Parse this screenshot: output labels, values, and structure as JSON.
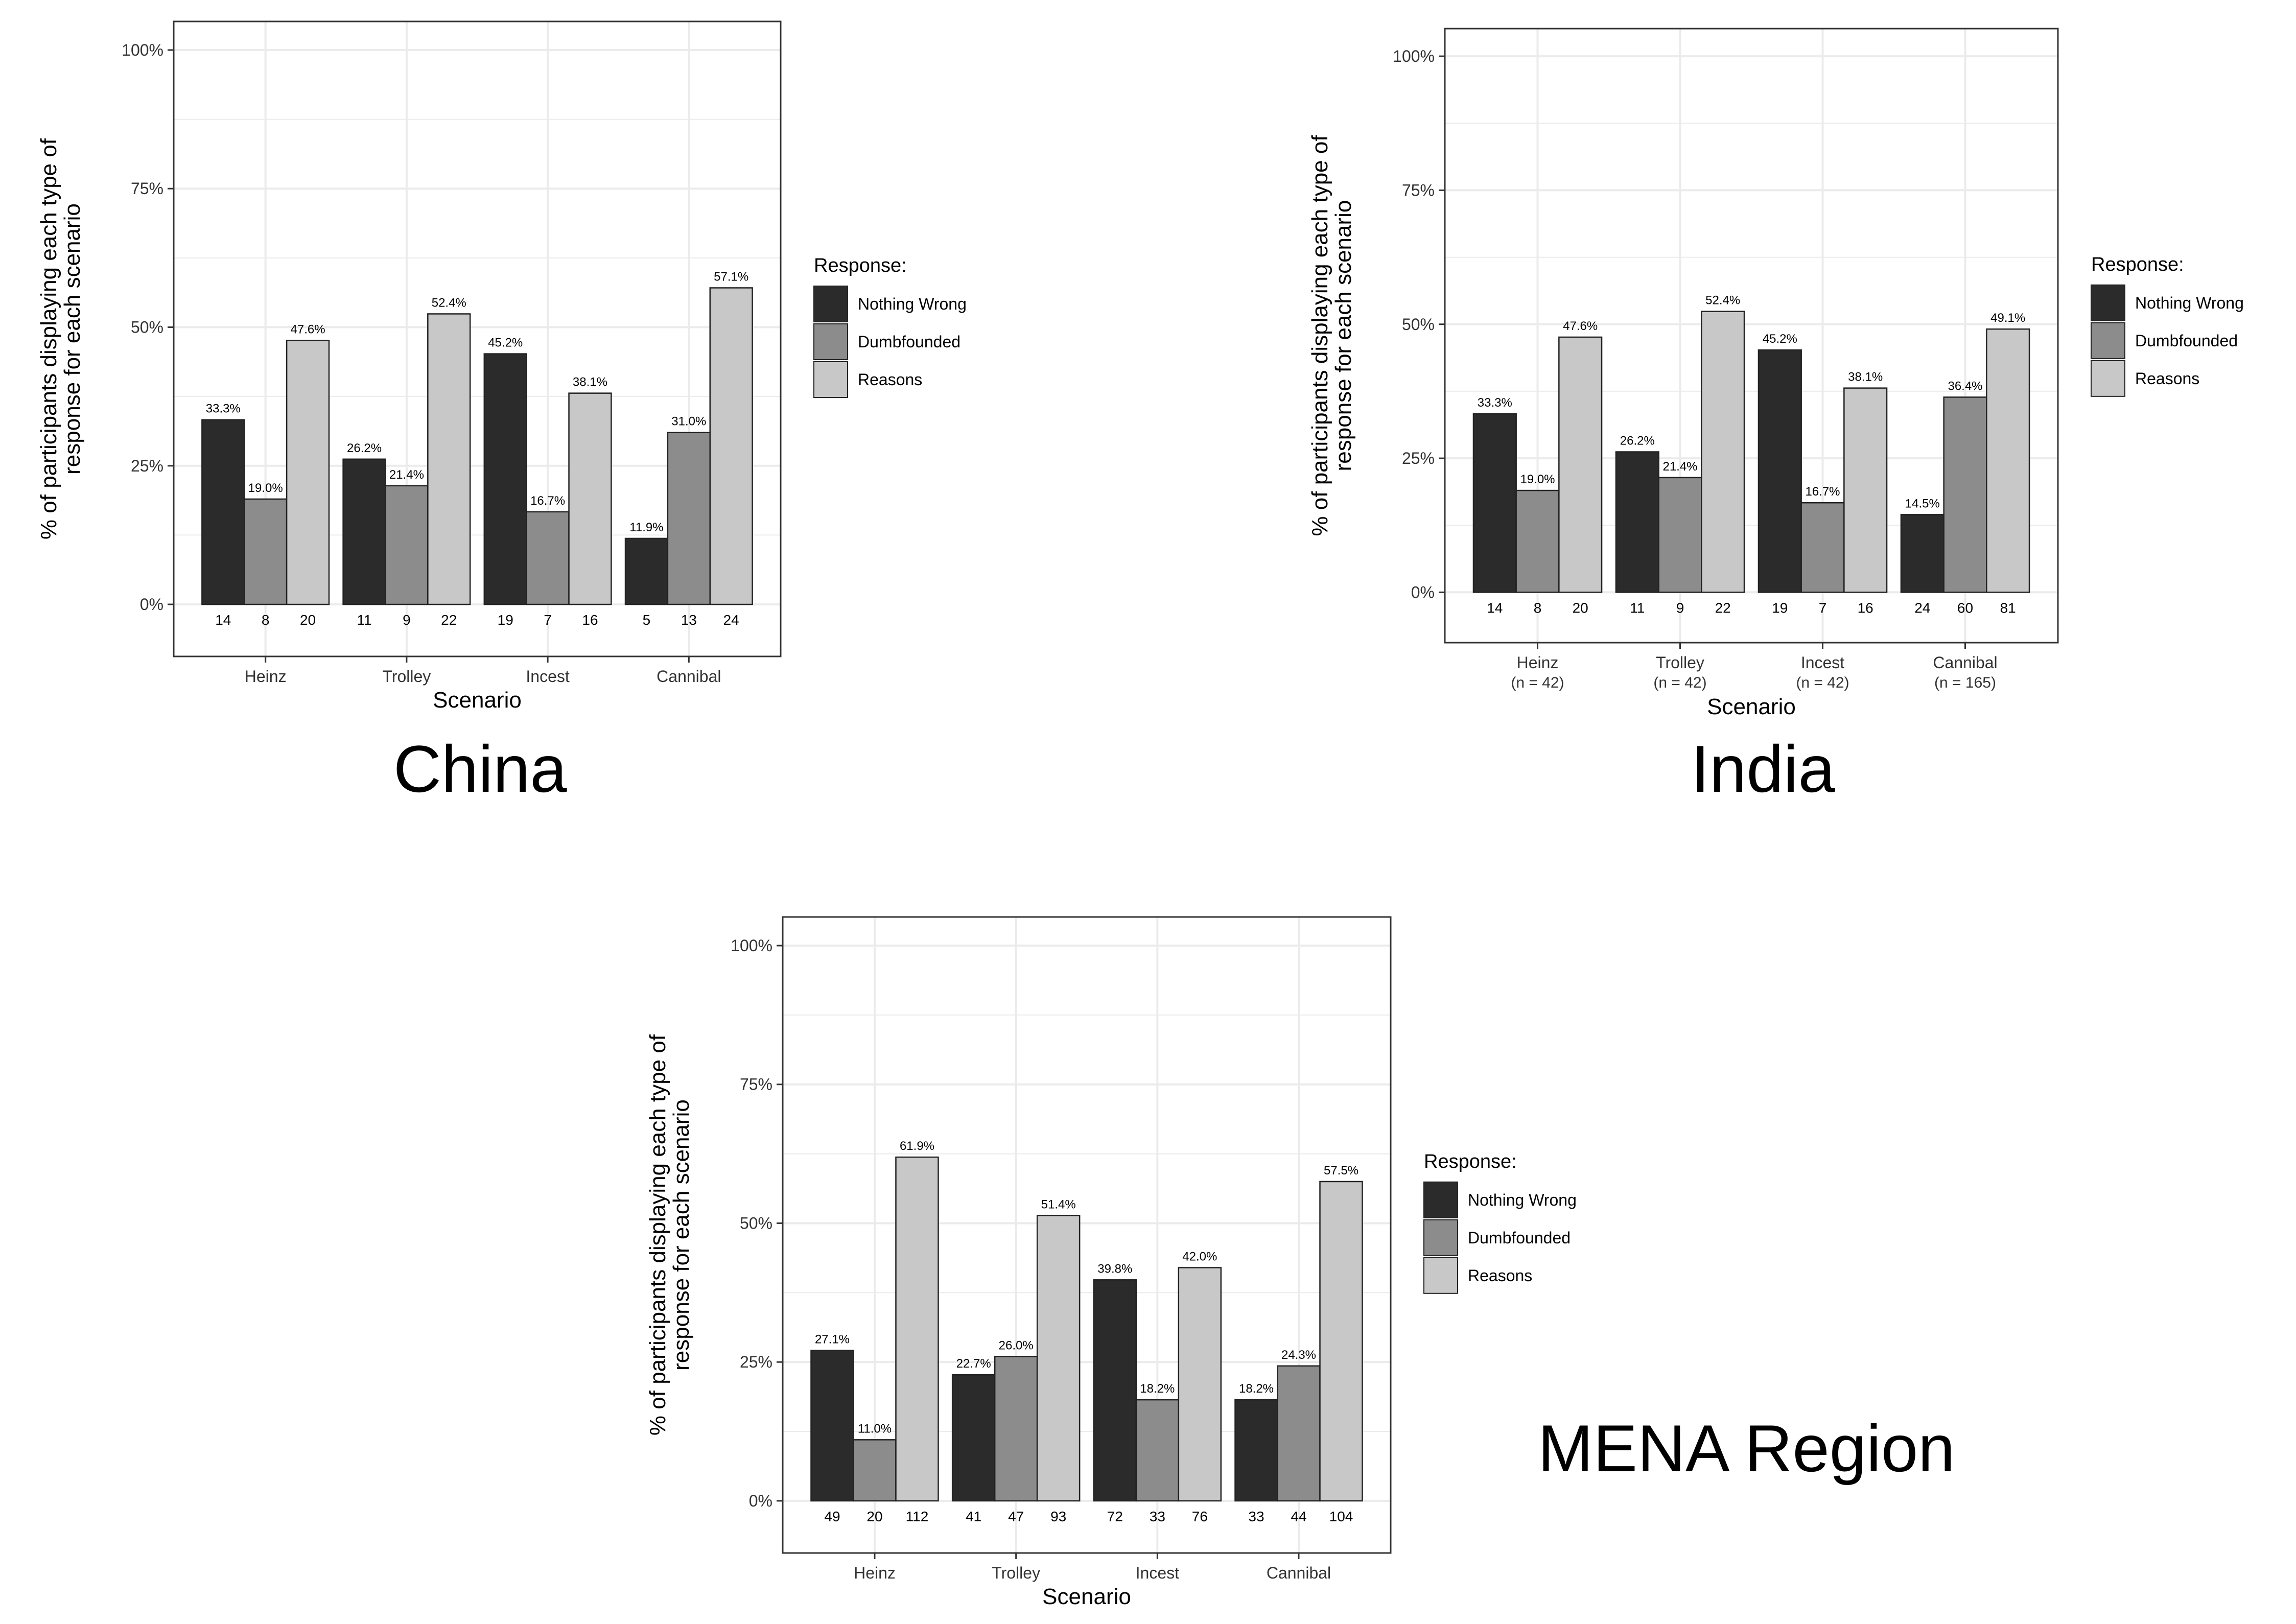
{
  "regions": {
    "china": "China",
    "india": "India",
    "mena": "MENA Region"
  },
  "colors": {
    "nothing_wrong": "#2b2b2b",
    "dumbfounded": "#8c8c8c",
    "reasons": "#c8c8c8",
    "grid": "#ebebeb"
  },
  "chart_data": [
    {
      "type": "bar",
      "region": "china",
      "xlabel": "Scenario",
      "ylabel": "% of participants displaying each type of response for each scenario",
      "ylim": [
        0,
        100
      ],
      "yticks": [
        "0%",
        "25%",
        "50%",
        "75%",
        "100%"
      ],
      "categories": [
        "Heinz",
        "Trolley",
        "Incest",
        "Cannibal"
      ],
      "category_subtitles": [],
      "legend": {
        "title": "Response:",
        "placement": "right"
      },
      "series": [
        {
          "name": "Nothing Wrong",
          "values": [
            33.3,
            26.2,
            45.2,
            11.9
          ],
          "labels": [
            "33.3%",
            "26.2%",
            "45.2%",
            "11.9%"
          ],
          "counts": [
            "14",
            "11",
            "19",
            "5"
          ]
        },
        {
          "name": "Dumbfounded",
          "values": [
            19.0,
            21.4,
            16.7,
            31.0
          ],
          "labels": [
            "19.0%",
            "21.4%",
            "16.7%",
            "31.0%"
          ],
          "counts": [
            "8",
            "9",
            "7",
            "13"
          ]
        },
        {
          "name": "Reasons",
          "values": [
            47.6,
            52.4,
            38.1,
            57.1
          ],
          "labels": [
            "47.6%",
            "52.4%",
            "38.1%",
            "57.1%"
          ],
          "counts": [
            "20",
            "22",
            "16",
            "24"
          ]
        }
      ]
    },
    {
      "type": "bar",
      "region": "india",
      "xlabel": "Scenario",
      "ylabel": "% of participants displaying each type of response for each scenario",
      "ylim": [
        0,
        100
      ],
      "yticks": [
        "0%",
        "25%",
        "50%",
        "75%",
        "100%"
      ],
      "categories": [
        "Heinz",
        "Trolley",
        "Incest",
        "Cannibal"
      ],
      "category_subtitles": [
        "(n = 42)",
        "(n = 42)",
        "(n = 42)",
        "(n = 165)"
      ],
      "legend": {
        "title": "Response:",
        "placement": "right"
      },
      "series": [
        {
          "name": "Nothing Wrong",
          "values": [
            33.3,
            26.2,
            45.2,
            14.5
          ],
          "labels": [
            "33.3%",
            "26.2%",
            "45.2%",
            "14.5%"
          ],
          "counts": [
            "14",
            "11",
            "19",
            "24"
          ]
        },
        {
          "name": "Dumbfounded",
          "values": [
            19.0,
            21.4,
            16.7,
            36.4
          ],
          "labels": [
            "19.0%",
            "21.4%",
            "16.7%",
            "36.4%"
          ],
          "counts": [
            "8",
            "9",
            "7",
            "60"
          ]
        },
        {
          "name": "Reasons",
          "values": [
            47.6,
            52.4,
            38.1,
            49.1
          ],
          "labels": [
            "47.6%",
            "52.4%",
            "38.1%",
            "49.1%"
          ],
          "counts": [
            "20",
            "22",
            "16",
            "81"
          ]
        }
      ]
    },
    {
      "type": "bar",
      "region": "mena",
      "xlabel": "Scenario",
      "ylabel": "% of participants displaying each type of response for each scenario",
      "ylim": [
        0,
        100
      ],
      "yticks": [
        "0%",
        "25%",
        "50%",
        "75%",
        "100%"
      ],
      "categories": [
        "Heinz",
        "Trolley",
        "Incest",
        "Cannibal"
      ],
      "category_subtitles": [],
      "legend": {
        "title": "Response:",
        "placement": "right"
      },
      "series": [
        {
          "name": "Nothing Wrong",
          "values": [
            27.1,
            22.7,
            39.8,
            18.2
          ],
          "labels": [
            "27.1%",
            "22.7%",
            "39.8%",
            "18.2%"
          ],
          "counts": [
            "49",
            "41",
            "72",
            "33"
          ]
        },
        {
          "name": "Dumbfounded",
          "values": [
            11.0,
            26.0,
            18.2,
            24.3
          ],
          "labels": [
            "11.0%",
            "26.0%",
            "18.2%",
            "24.3%"
          ],
          "counts": [
            "20",
            "47",
            "33",
            "44"
          ]
        },
        {
          "name": "Reasons",
          "values": [
            61.9,
            51.4,
            42.0,
            57.5
          ],
          "labels": [
            "61.9%",
            "51.4%",
            "42.0%",
            "57.5%"
          ],
          "counts": [
            "112",
            "93",
            "76",
            "104"
          ]
        }
      ]
    }
  ]
}
